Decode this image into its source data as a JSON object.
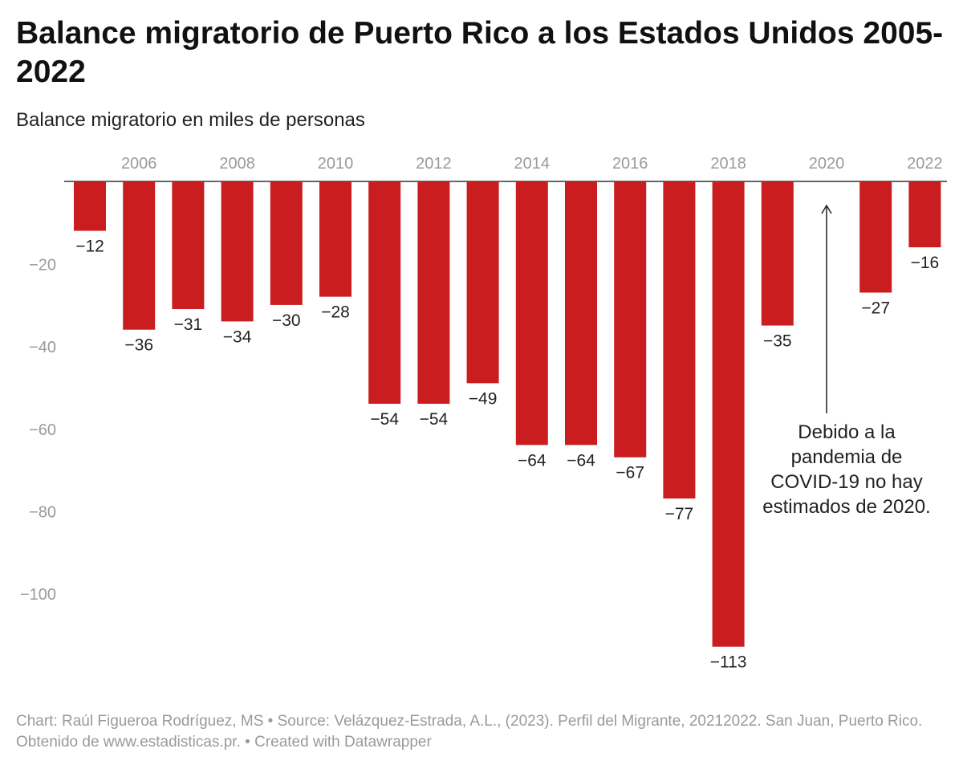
{
  "header": {
    "title": "Balance migratorio de Puerto Rico a los Estados Unidos 2005-2022",
    "subtitle": "Balance migratorio en miles de personas"
  },
  "footer": {
    "text": "Chart: Raúl Figueroa Rodríguez, MS • Source: Velázquez-Estrada, A.L., (2023). Perfil del Migrante, 20212022. San Juan, Puerto Rico. Obtenido de www.estadisticas.pr.  • Created with Datawrapper"
  },
  "colors": {
    "bar": "#c91d1f",
    "axis_text": "#9a9a9a",
    "label_text": "#222222"
  },
  "chart_data": {
    "type": "bar",
    "title": "Balance migratorio de Puerto Rico a los Estados Unidos 2005-2022",
    "ylabel": "Balance migratorio en miles de personas",
    "categories": [
      "2005",
      "2006",
      "2007",
      "2008",
      "2009",
      "2010",
      "2011",
      "2012",
      "2013",
      "2014",
      "2015",
      "2016",
      "2017",
      "2018",
      "2019",
      "2020",
      "2021",
      "2022"
    ],
    "values": [
      -12,
      -36,
      -31,
      -34,
      -30,
      -28,
      -54,
      -54,
      -49,
      -64,
      -64,
      -67,
      -77,
      -113,
      -35,
      null,
      -27,
      -16
    ],
    "value_labels": [
      "−12",
      "−36",
      "−31",
      "−34",
      "−30",
      "−28",
      "−54",
      "−54",
      "−49",
      "−64",
      "−64",
      "−67",
      "−77",
      "−113",
      "−35",
      "",
      "−27",
      "−16"
    ],
    "x_tick_labels": [
      "2006",
      "2008",
      "2010",
      "2012",
      "2014",
      "2016",
      "2018",
      "2020",
      "2022"
    ],
    "y_ticks": [
      -20,
      -40,
      -60,
      -80,
      -100
    ],
    "y_tick_labels": [
      "−20",
      "−40",
      "−60",
      "−80",
      "−100"
    ],
    "ylim": [
      -113,
      0
    ],
    "x_axis_position": "top",
    "annotation": {
      "target": "2020",
      "lines": [
        "Debido a la",
        "pandemia de",
        "COVID-19 no hay",
        "estimados de 2020."
      ]
    }
  }
}
